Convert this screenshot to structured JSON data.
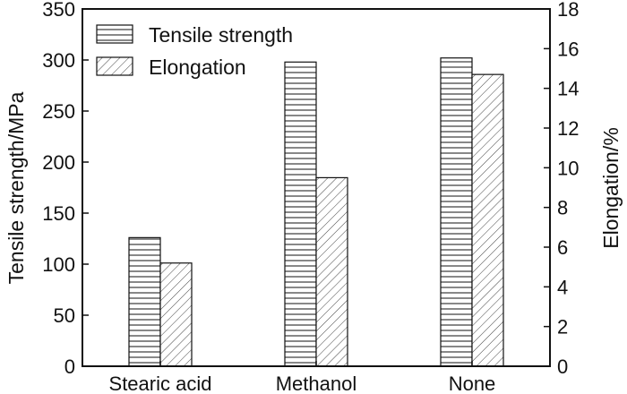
{
  "chart_data": {
    "type": "bar",
    "categories": [
      "Stearic acid",
      "Methanol",
      "None"
    ],
    "series": [
      {
        "name": "Tensile strength",
        "axis": "left",
        "pattern": "horizontal-lines",
        "values": [
          126,
          298,
          302
        ]
      },
      {
        "name": "Elongation",
        "axis": "right",
        "pattern": "diagonal-hatch",
        "values": [
          5.2,
          9.5,
          14.7
        ]
      }
    ],
    "y_left": {
      "label": "Tensile strength/MPa",
      "ylim": [
        0,
        350
      ],
      "ticks": [
        0,
        50,
        100,
        150,
        200,
        250,
        300,
        350
      ]
    },
    "y_right": {
      "label": "Elongation/%",
      "ylim": [
        0,
        18
      ],
      "ticks": [
        0,
        2,
        4,
        6,
        8,
        10,
        12,
        14,
        16,
        18
      ]
    },
    "legend": {
      "placement": "top-left",
      "entries": [
        "Tensile strength",
        "Elongation"
      ]
    },
    "grid": false,
    "colors": {
      "stroke": "#111111",
      "fill": "#ffffff"
    }
  }
}
